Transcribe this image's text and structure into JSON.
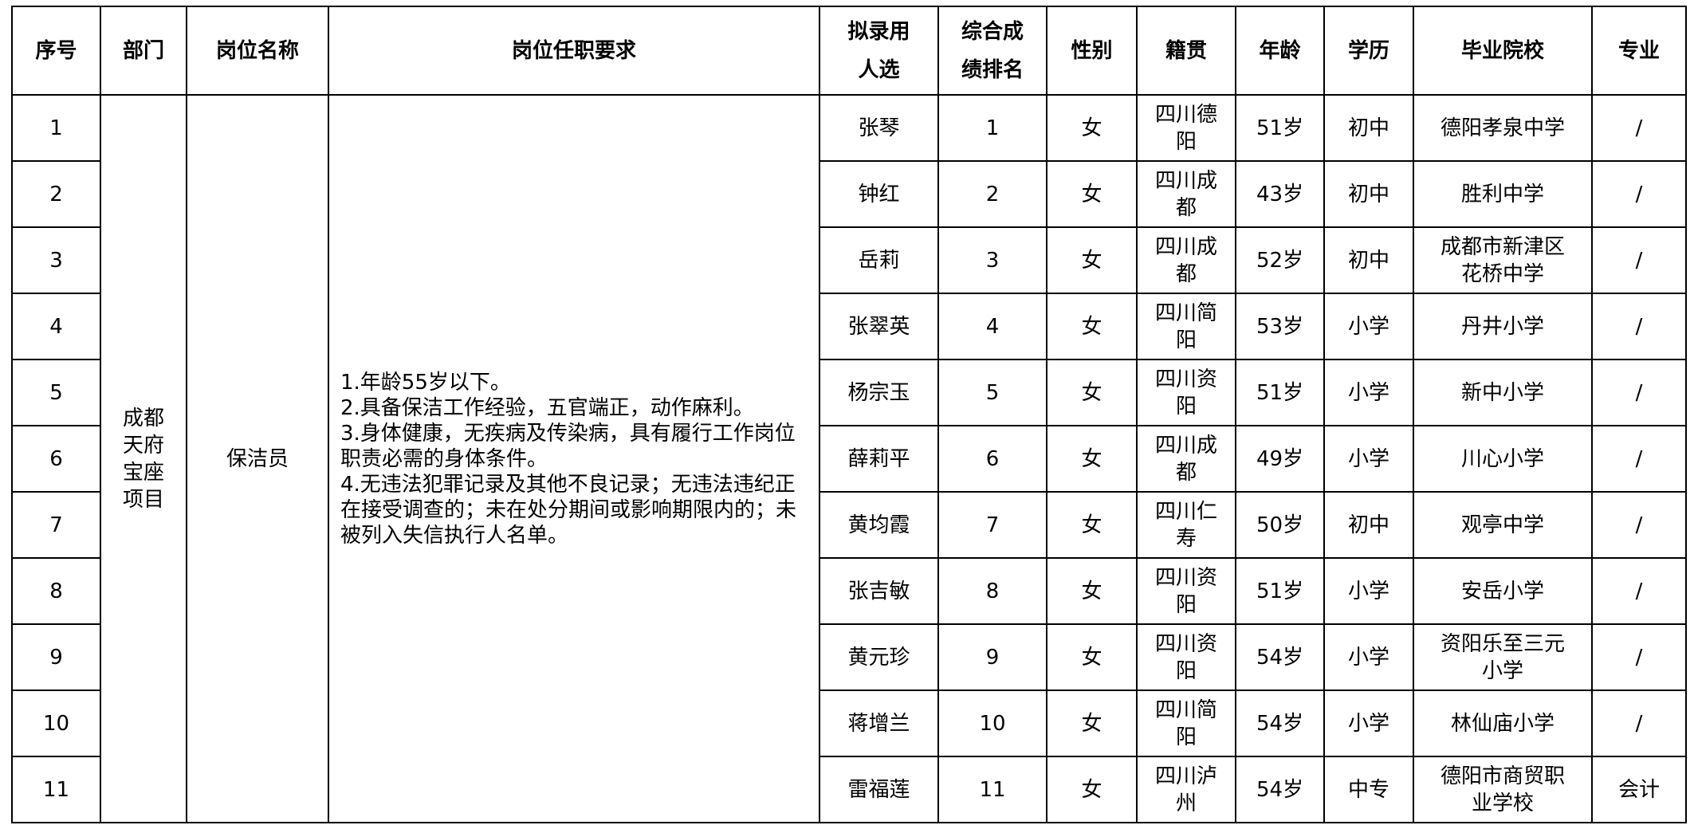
{
  "headers": [
    "序号",
    "部门",
    "岗位名称",
    "岗位任职要求",
    "拟录用\n人选",
    "综合成\n绩排名",
    "性别",
    "籍贯",
    "年龄",
    "学历",
    "毕业院校",
    "专业"
  ],
  "department": "成都\n天府\n宝座\n项目",
  "position": "保洁员",
  "requirements": "1.年龄55岁以下。\n2.具备保洁工作经验，五官端正，动作麻利。\n3.身体健康，无疾病及传染病，具有履行工作岗位职责必需的身体条件。\n4.无违法犯罪记录及其他不良记录；无违法违纪正在接受调查的；未在处分期间或影响期限内的；未被列入失信执行人名单。",
  "rows": [
    {
      "no": "1",
      "name": "张琴",
      "rank": "1",
      "gender": "女",
      "origin": "四川德\n阳",
      "age": "51岁",
      "edu": "初中",
      "school": "德阳孝泉中学",
      "major": "/"
    },
    {
      "no": "2",
      "name": "钟红",
      "rank": "2",
      "gender": "女",
      "origin": "四川成\n都",
      "age": "43岁",
      "edu": "初中",
      "school": "胜利中学",
      "major": "/"
    },
    {
      "no": "3",
      "name": "岳莉",
      "rank": "3",
      "gender": "女",
      "origin": "四川成\n都",
      "age": "52岁",
      "edu": "初中",
      "school": "成都市新津区\n花桥中学",
      "major": "/"
    },
    {
      "no": "4",
      "name": "张翠英",
      "rank": "4",
      "gender": "女",
      "origin": "四川简\n阳",
      "age": "53岁",
      "edu": "小学",
      "school": "丹井小学",
      "major": "/"
    },
    {
      "no": "5",
      "name": "杨宗玉",
      "rank": "5",
      "gender": "女",
      "origin": "四川资\n阳",
      "age": "51岁",
      "edu": "小学",
      "school": "新中小学",
      "major": "/"
    },
    {
      "no": "6",
      "name": "薛莉平",
      "rank": "6",
      "gender": "女",
      "origin": "四川成\n都",
      "age": "49岁",
      "edu": "小学",
      "school": "川心小学",
      "major": "/"
    },
    {
      "no": "7",
      "name": "黄均霞",
      "rank": "7",
      "gender": "女",
      "origin": "四川仁\n寿",
      "age": "50岁",
      "edu": "初中",
      "school": "观亭中学",
      "major": "/"
    },
    {
      "no": "8",
      "name": "张吉敏",
      "rank": "8",
      "gender": "女",
      "origin": "四川资\n阳",
      "age": "51岁",
      "edu": "小学",
      "school": "安岳小学",
      "major": "/"
    },
    {
      "no": "9",
      "name": "黄元珍",
      "rank": "9",
      "gender": "女",
      "origin": "四川资\n阳",
      "age": "54岁",
      "edu": "小学",
      "school": "资阳乐至三元\n小学",
      "major": "/"
    },
    {
      "no": "10",
      "name": "蒋增兰",
      "rank": "10",
      "gender": "女",
      "origin": "四川简\n阳",
      "age": "54岁",
      "edu": "小学",
      "school": "林仙庙小学",
      "major": "/"
    },
    {
      "no": "11",
      "name": "雷福莲",
      "rank": "11",
      "gender": "女",
      "origin": "四川泸\n州",
      "age": "54岁",
      "edu": "中专",
      "school": "德阳市商贸职\n业学校",
      "major": "会计"
    }
  ]
}
